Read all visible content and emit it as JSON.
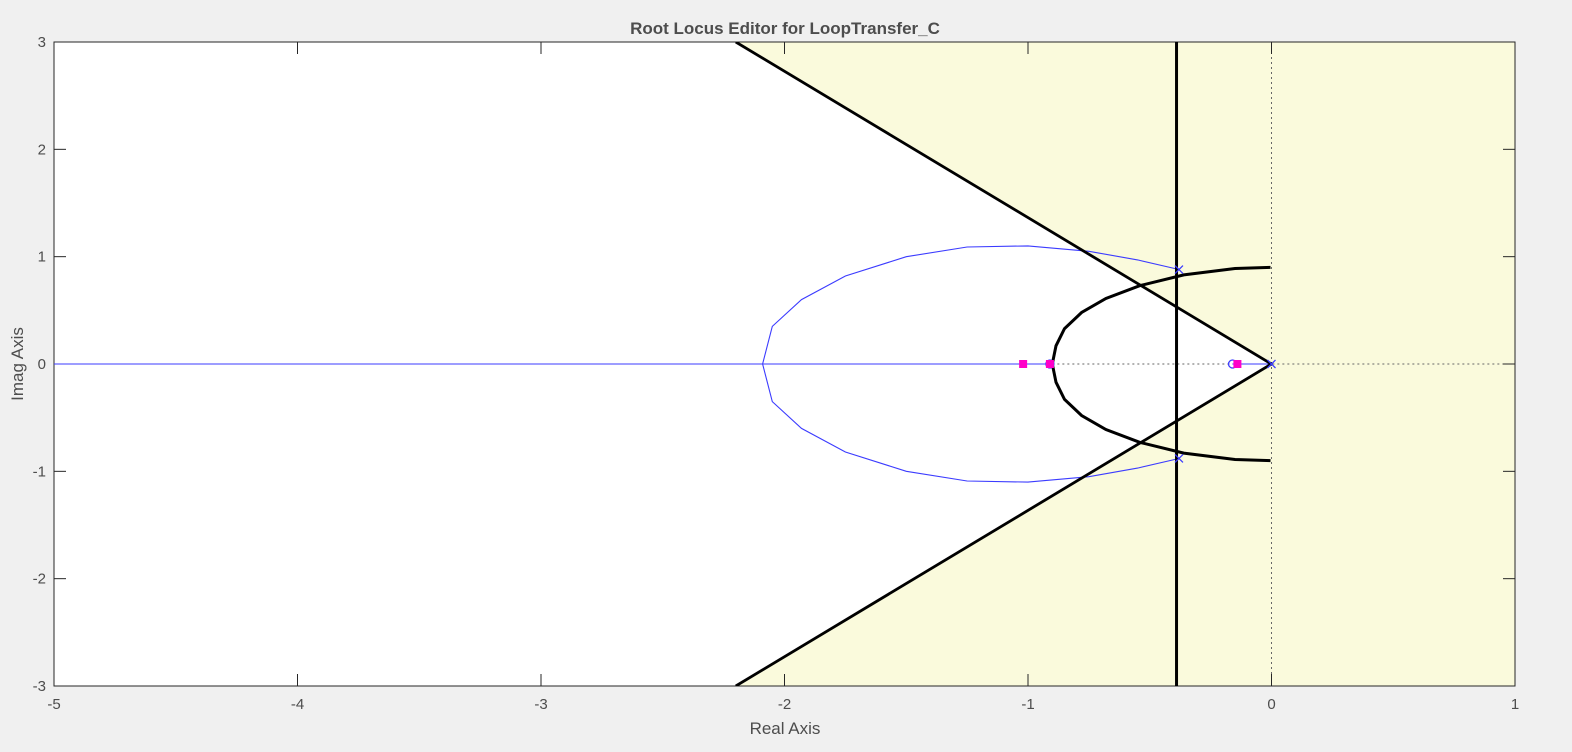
{
  "chart_data": {
    "type": "scatter",
    "title": "Root Locus Editor for LoopTransfer_C",
    "xlabel": "Real Axis",
    "ylabel": "Imag Axis",
    "xlim": [
      -5,
      1
    ],
    "ylim": [
      -3,
      3
    ],
    "xticks": [
      -5,
      -4,
      -3,
      -2,
      -1,
      0,
      1
    ],
    "yticks": [
      -3,
      -2,
      -1,
      0,
      1,
      2,
      3
    ],
    "grid": false,
    "colors": {
      "figure_bg": "#f0f0f0",
      "plot_bg": "#ffffff",
      "design_region": "#fafadc",
      "locus": "#3b3bff",
      "constraint": "#000000",
      "closed_loop_poles": "#ff00c8",
      "zero_origin_lines": "#666666"
    },
    "design_region": {
      "boundary": [
        [
          -2.2,
          3
        ],
        [
          0,
          0
        ],
        [
          -2.2,
          -3
        ]
      ],
      "settling_time_bound_real": -0.39
    },
    "constraints": {
      "damping_line_upper": [
        [
          -2.2,
          3
        ],
        [
          0,
          0
        ]
      ],
      "damping_line_lower": [
        [
          -2.2,
          -3
        ],
        [
          0,
          0
        ]
      ],
      "vertical_line_x": -0.39,
      "natural_frequency_arc": [
        [
          -0.004,
          0.9
        ],
        [
          -0.15,
          0.89
        ],
        [
          -0.36,
          0.83
        ],
        [
          -0.54,
          0.73
        ],
        [
          -0.68,
          0.61
        ],
        [
          -0.78,
          0.48
        ],
        [
          -0.85,
          0.33
        ],
        [
          -0.885,
          0.17
        ],
        [
          -0.9,
          0.0
        ],
        [
          -0.885,
          -0.17
        ],
        [
          -0.85,
          -0.33
        ],
        [
          -0.78,
          -0.48
        ],
        [
          -0.68,
          -0.61
        ],
        [
          -0.54,
          -0.73
        ],
        [
          -0.36,
          -0.83
        ],
        [
          -0.15,
          -0.89
        ],
        [
          -0.004,
          -0.9
        ]
      ]
    },
    "series": [
      {
        "type": "line",
        "points": [
          [
            -0.38,
            0.88
          ],
          [
            -0.55,
            0.97
          ],
          [
            -0.75,
            1.05
          ],
          [
            -1.0,
            1.1
          ],
          [
            -1.25,
            1.09
          ],
          [
            -1.5,
            1.0
          ],
          [
            -1.75,
            0.82
          ],
          [
            -1.93,
            0.6
          ],
          [
            -2.05,
            0.35
          ],
          [
            -2.09,
            0.0
          ],
          [
            -2.05,
            -0.35
          ],
          [
            -1.93,
            -0.6
          ],
          [
            -1.75,
            -0.82
          ],
          [
            -1.5,
            -1.0
          ],
          [
            -1.25,
            -1.09
          ],
          [
            -1.0,
            -1.1
          ],
          [
            -0.75,
            -1.05
          ],
          [
            -0.55,
            -0.97
          ],
          [
            -0.38,
            -0.88
          ]
        ]
      },
      {
        "type": "line",
        "points": [
          [
            -5.0,
            0
          ],
          [
            -0.91,
            0
          ]
        ]
      },
      {
        "type": "line",
        "points": [
          [
            -0.16,
            0
          ],
          [
            0.0,
            0
          ]
        ]
      }
    ],
    "open_loop_poles": [
      [
        0.0,
        0.0
      ],
      [
        -0.38,
        0.88
      ],
      [
        -0.38,
        -0.88
      ]
    ],
    "open_loop_zeros": [
      [
        -0.91,
        0.0
      ],
      [
        -0.16,
        0.0
      ]
    ],
    "closed_loop_poles": [
      [
        -1.02,
        0.0
      ],
      [
        -0.14,
        0.0
      ],
      [
        -0.91,
        0.0
      ]
    ]
  }
}
